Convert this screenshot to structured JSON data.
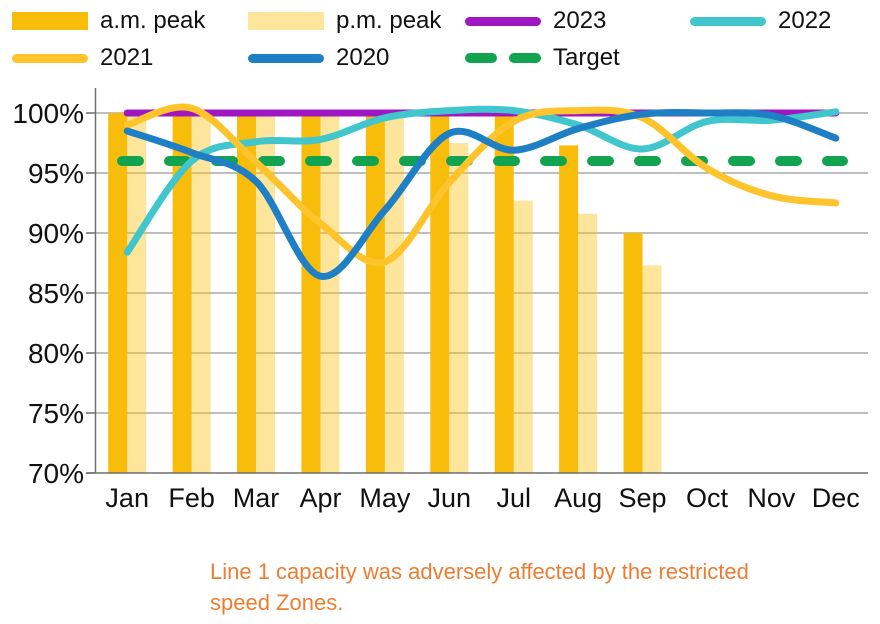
{
  "legend": {
    "items_note": "two-row legend above chart"
  },
  "chart_data": {
    "type": "bar+line combo",
    "title": "",
    "categories": [
      "Jan",
      "Feb",
      "Mar",
      "Apr",
      "May",
      "Jun",
      "Jul",
      "Aug",
      "Sep",
      "Oct",
      "Nov",
      "Dec"
    ],
    "y_ticks": [
      "100%",
      "95%",
      "90%",
      "85%",
      "80%",
      "75%",
      "70%"
    ],
    "y_tick_values": [
      100,
      95,
      90,
      85,
      80,
      75,
      70
    ],
    "ylim": [
      70,
      102
    ],
    "grid": "horizontal",
    "legend_position": "top",
    "bar_series": [
      {
        "name": "a.m. peak",
        "color": "#F7BD0A",
        "opacity": 1,
        "values": [
          100,
          100,
          99.9,
          100,
          100,
          100,
          99.8,
          97.3,
          90,
          null,
          null,
          null
        ]
      },
      {
        "name": "p.m. peak",
        "color": "#FBC110",
        "opacity": 0.42,
        "values": [
          99.9,
          99.8,
          99.9,
          100,
          100,
          97.5,
          92.7,
          91.6,
          87.3,
          null,
          null,
          null
        ]
      }
    ],
    "line_series": [
      {
        "name": "2023",
        "color": "#A016C0",
        "values": [
          100,
          100,
          100,
          100,
          100,
          100,
          100,
          100,
          100,
          100,
          100,
          100
        ]
      },
      {
        "name": "2022",
        "color": "#41C6CE",
        "values": [
          88.4,
          96,
          97.6,
          97.8,
          99.6,
          100.2,
          100.2,
          99,
          97,
          99.3,
          99.4,
          100.1
        ]
      },
      {
        "name": "2021",
        "color": "#FFC32B",
        "values": [
          99,
          100.4,
          95.9,
          90.8,
          87.6,
          94.2,
          99.3,
          100.2,
          99.6,
          95.4,
          93.1,
          92.5
        ]
      },
      {
        "name": "2020",
        "color": "#1F7FC4",
        "values": [
          98.5,
          96.7,
          94.3,
          86.4,
          91.9,
          98.3,
          96.9,
          98.7,
          99.9,
          100,
          99.8,
          97.9
        ]
      }
    ],
    "target": {
      "name": "Target",
      "color": "#12A351",
      "value": 96
    },
    "colors": {
      "axis": "#6E6E6E",
      "gridline": "#7F7F7F",
      "tick_label": "#111111",
      "caption": "#ED7D31"
    },
    "caption_lines": [
      "Line 1 capacity was adversely affected by the restricted",
      "speed Zones."
    ]
  }
}
